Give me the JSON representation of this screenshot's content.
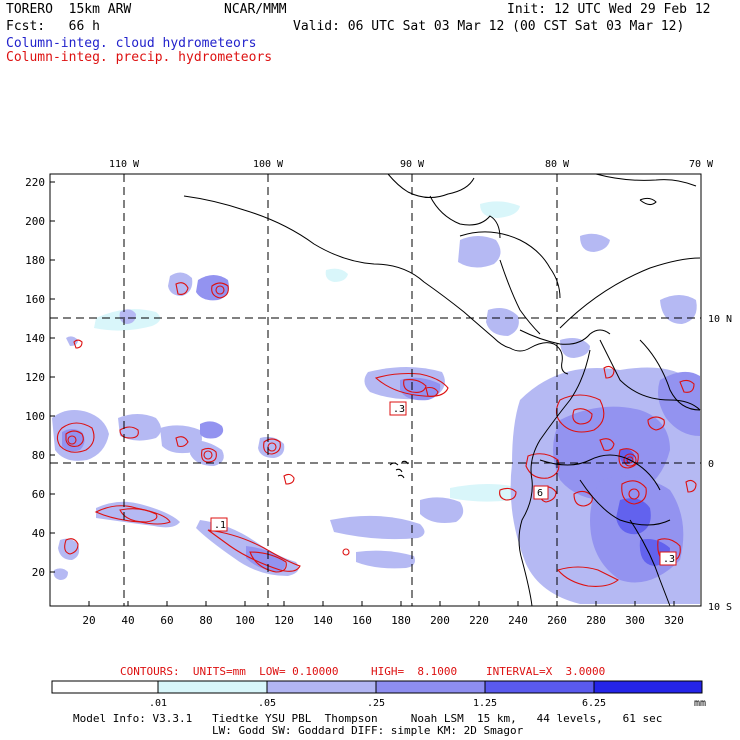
{
  "header": {
    "model": "TORERO  15km ARW",
    "center": "NCAR/MMM",
    "init": "Init: 12 UTC Wed 29 Feb 12",
    "forecast": "Fcst:   66 h",
    "valid": "Valid: 06 UTC Sat 03 Mar 12 (00 CST Sat 03 Mar 12)",
    "field_cloud": "Column-integ. cloud hydrometeors",
    "field_precip": "Column-integ. precip. hydrometeors"
  },
  "map": {
    "top_lon_labels": [
      "110 W",
      "100 W",
      "90 W",
      "80 W",
      "70 W"
    ],
    "right_lat_labels": [
      "10 N",
      "0",
      "10 S"
    ],
    "y_ticks": [
      "220",
      "200",
      "180",
      "160",
      "140",
      "120",
      "100",
      "80",
      "60",
      "40",
      "20"
    ],
    "x_ticks": [
      "20",
      "40",
      "60",
      "80",
      "100",
      "120",
      "140",
      "160",
      "180",
      "200",
      "220",
      "240",
      "260",
      "280",
      "300",
      "320"
    ],
    "contour_labels": [
      ".3",
      ".1",
      "6",
      ".3"
    ]
  },
  "contour_info": {
    "units": "CONTOURS:  UNITS=mm  LOW= 0.10000",
    "high": "HIGH=  8.1000",
    "interval": "INTERVAL=X  3.0000"
  },
  "colorbar": {
    "labels": [
      ".01",
      ".05",
      ".25",
      "1.25",
      "6.25"
    ],
    "units": "mm",
    "colors": [
      "#ffffff",
      "#d8f6fa",
      "#b2b6f3",
      "#8e8ef0",
      "#5a5aee",
      "#2424e8"
    ]
  },
  "footer": {
    "line1": "Model Info: V3.3.1   Tiedtke YSU PBL  Thompson     Noah LSM  15 km,   44 levels,   61 sec",
    "line2": "LW: Godd SW: Goddard DIFF: simple KM: 2D Smagor"
  }
}
